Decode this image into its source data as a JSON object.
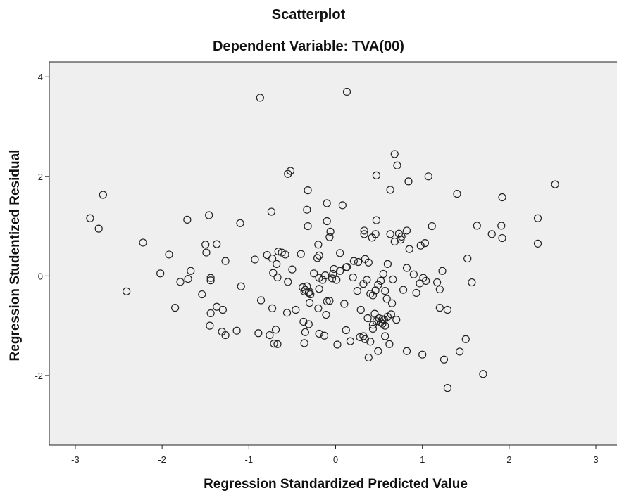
{
  "chart_data": {
    "type": "scatter",
    "title": "Scatterplot",
    "subtitle": "Dependent Variable: TVA(00)",
    "xlabel": "Regression Standardized Predicted Value",
    "ylabel": "Regression Studentized Residual",
    "xlim": [
      -3.3,
      3.3
    ],
    "ylim": [
      -3.4,
      4.3
    ],
    "xticks": [
      -3,
      -2,
      -1,
      0,
      1,
      2,
      3
    ],
    "yticks": [
      -2,
      0,
      2,
      4
    ],
    "grid": false,
    "colors": {
      "plot_bg": "#efefef",
      "marker": "#222222",
      "axis": "#222222"
    },
    "points": [
      [
        -0.87,
        3.58
      ],
      [
        0.13,
        3.7
      ],
      [
        -0.55,
        2.05
      ],
      [
        -0.52,
        2.11
      ],
      [
        0.68,
        2.45
      ],
      [
        0.71,
        2.22
      ],
      [
        0.47,
        2.02
      ],
      [
        1.07,
        2.0
      ],
      [
        0.84,
        1.9
      ],
      [
        0.63,
        1.73
      ],
      [
        1.4,
        1.65
      ],
      [
        1.92,
        1.58
      ],
      [
        2.53,
        1.84
      ],
      [
        -2.83,
        1.16
      ],
      [
        -2.73,
        0.95
      ],
      [
        -2.68,
        1.63
      ],
      [
        -1.71,
        1.13
      ],
      [
        -1.46,
        1.22
      ],
      [
        -1.1,
        1.06
      ],
      [
        -0.74,
        1.29
      ],
      [
        -0.32,
        1.72
      ],
      [
        -0.33,
        1.33
      ],
      [
        -0.1,
        1.46
      ],
      [
        0.08,
        1.42
      ],
      [
        0.47,
        1.12
      ],
      [
        0.63,
        0.84
      ],
      [
        1.11,
        1.0
      ],
      [
        1.63,
        1.01
      ],
      [
        1.8,
        0.84
      ],
      [
        1.91,
        1.01
      ],
      [
        1.92,
        0.76
      ],
      [
        2.33,
        1.16
      ],
      [
        2.33,
        0.65
      ],
      [
        -2.22,
        0.67
      ],
      [
        -1.92,
        0.43
      ],
      [
        -1.5,
        0.63
      ],
      [
        -1.49,
        0.47
      ],
      [
        -1.37,
        0.64
      ],
      [
        -1.27,
        0.3
      ],
      [
        -0.93,
        0.33
      ],
      [
        -0.79,
        0.42
      ],
      [
        -0.73,
        0.35
      ],
      [
        -0.66,
        0.49
      ],
      [
        -0.62,
        0.47
      ],
      [
        -0.58,
        0.43
      ],
      [
        -0.32,
        1.0
      ],
      [
        -0.1,
        1.1
      ],
      [
        -0.06,
        0.89
      ],
      [
        -0.07,
        0.78
      ],
      [
        -0.2,
        0.63
      ],
      [
        -0.19,
        0.41
      ],
      [
        0.05,
        0.46
      ],
      [
        0.21,
        0.3
      ],
      [
        0.33,
        0.91
      ],
      [
        0.33,
        0.84
      ],
      [
        0.42,
        0.77
      ],
      [
        0.46,
        0.84
      ],
      [
        0.73,
        0.85
      ],
      [
        0.76,
        0.79
      ],
      [
        0.75,
        0.73
      ],
      [
        0.82,
        0.91
      ],
      [
        0.68,
        0.69
      ],
      [
        0.85,
        0.54
      ],
      [
        0.98,
        0.61
      ],
      [
        1.03,
        0.66
      ],
      [
        0.6,
        0.24
      ],
      [
        0.34,
        0.34
      ],
      [
        0.38,
        0.27
      ],
      [
        0.13,
        0.18
      ],
      [
        -2.02,
        0.05
      ],
      [
        -1.67,
        0.1
      ],
      [
        -1.79,
        -0.12
      ],
      [
        -1.7,
        -0.06
      ],
      [
        -1.44,
        -0.04
      ],
      [
        -1.44,
        -0.09
      ],
      [
        -1.09,
        -0.21
      ],
      [
        -0.86,
        -0.49
      ],
      [
        -0.72,
        0.06
      ],
      [
        -0.67,
        -0.03
      ],
      [
        -0.68,
        0.24
      ],
      [
        -0.55,
        -0.12
      ],
      [
        -0.5,
        0.13
      ],
      [
        -0.4,
        0.44
      ],
      [
        -0.38,
        -0.23
      ],
      [
        -0.35,
        -0.28
      ],
      [
        -0.36,
        -0.31
      ],
      [
        -0.33,
        -0.21
      ],
      [
        -0.31,
        -0.34
      ],
      [
        -0.3,
        -0.32
      ],
      [
        -0.29,
        -0.37
      ],
      [
        -0.25,
        0.05
      ],
      [
        -0.21,
        0.36
      ],
      [
        -0.19,
        -0.04
      ],
      [
        -0.19,
        -0.26
      ],
      [
        -0.15,
        -0.08
      ],
      [
        -0.12,
        0.01
      ],
      [
        -0.04,
        -0.05
      ],
      [
        -0.02,
        0.14
      ],
      [
        -0.03,
        0.04
      ],
      [
        0.01,
        -0.08
      ],
      [
        0.05,
        0.1
      ],
      [
        0.12,
        0.17
      ],
      [
        0.2,
        -0.03
      ],
      [
        0.25,
        -0.3
      ],
      [
        0.26,
        0.28
      ],
      [
        0.32,
        -0.16
      ],
      [
        0.36,
        -0.08
      ],
      [
        0.4,
        -0.36
      ],
      [
        0.43,
        -0.39
      ],
      [
        0.46,
        -0.29
      ],
      [
        0.49,
        -0.18
      ],
      [
        0.52,
        -0.1
      ],
      [
        0.55,
        0.04
      ],
      [
        0.57,
        -0.3
      ],
      [
        0.59,
        -0.46
      ],
      [
        0.65,
        -0.55
      ],
      [
        0.66,
        -0.07
      ],
      [
        0.78,
        -0.28
      ],
      [
        0.82,
        0.16
      ],
      [
        0.9,
        0.03
      ],
      [
        0.93,
        -0.34
      ],
      [
        0.97,
        -0.15
      ],
      [
        1.01,
        -0.04
      ],
      [
        1.04,
        -0.1
      ],
      [
        1.17,
        -0.13
      ],
      [
        1.2,
        -0.27
      ],
      [
        1.23,
        0.1
      ],
      [
        1.52,
        0.35
      ],
      [
        1.57,
        -0.13
      ],
      [
        -2.41,
        -0.31
      ],
      [
        -1.85,
        -0.64
      ],
      [
        -1.54,
        -0.37
      ],
      [
        -1.44,
        -0.75
      ],
      [
        -1.37,
        -0.62
      ],
      [
        -1.3,
        -0.68
      ],
      [
        -1.45,
        -1.0
      ],
      [
        -1.31,
        -1.12
      ],
      [
        -1.27,
        -1.19
      ],
      [
        -1.14,
        -1.1
      ],
      [
        -0.89,
        -1.15
      ],
      [
        -0.76,
        -1.19
      ],
      [
        -0.73,
        -0.65
      ],
      [
        -0.71,
        -1.36
      ],
      [
        -0.69,
        -1.08
      ],
      [
        -0.67,
        -1.37
      ],
      [
        -0.56,
        -0.74
      ],
      [
        -0.46,
        -0.68
      ],
      [
        -0.37,
        -0.92
      ],
      [
        -0.35,
        -1.13
      ],
      [
        -0.36,
        -1.35
      ],
      [
        -0.31,
        -0.97
      ],
      [
        -0.3,
        -0.54
      ],
      [
        -0.2,
        -0.65
      ],
      [
        -0.19,
        -1.16
      ],
      [
        -0.13,
        -1.2
      ],
      [
        -0.11,
        -0.78
      ],
      [
        -0.1,
        -0.51
      ],
      [
        -0.07,
        -0.5
      ],
      [
        0.02,
        -1.38
      ],
      [
        0.1,
        -0.56
      ],
      [
        0.12,
        -1.09
      ],
      [
        0.17,
        -1.31
      ],
      [
        0.28,
        -1.23
      ],
      [
        0.29,
        -0.68
      ],
      [
        0.32,
        -1.21
      ],
      [
        0.34,
        -1.27
      ],
      [
        0.37,
        -0.85
      ],
      [
        0.38,
        -1.64
      ],
      [
        0.4,
        -1.32
      ],
      [
        0.43,
        -1.06
      ],
      [
        0.43,
        -0.98
      ],
      [
        0.45,
        -0.76
      ],
      [
        0.47,
        -0.91
      ],
      [
        0.5,
        -0.85
      ],
      [
        0.52,
        -0.93
      ],
      [
        0.54,
        -0.87
      ],
      [
        0.54,
        -0.96
      ],
      [
        0.56,
        -0.88
      ],
      [
        0.57,
        -1.21
      ],
      [
        0.57,
        -1.0
      ],
      [
        0.6,
        -0.82
      ],
      [
        0.62,
        -1.37
      ],
      [
        0.64,
        -0.77
      ],
      [
        0.7,
        -0.88
      ],
      [
        0.49,
        -1.51
      ],
      [
        0.82,
        -1.51
      ],
      [
        1.0,
        -1.58
      ],
      [
        1.2,
        -0.64
      ],
      [
        1.29,
        -0.68
      ],
      [
        1.25,
        -1.68
      ],
      [
        1.29,
        -2.25
      ],
      [
        1.43,
        -1.52
      ],
      [
        1.5,
        -1.27
      ],
      [
        1.7,
        -1.97
      ]
    ]
  }
}
